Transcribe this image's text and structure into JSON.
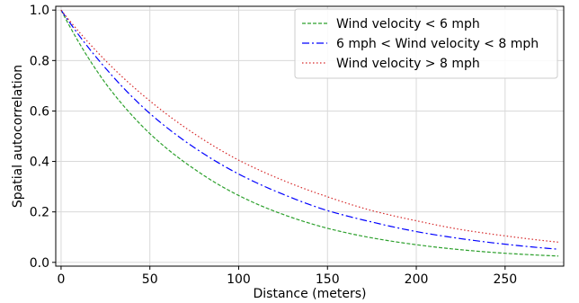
{
  "chart_data": {
    "type": "line",
    "xlabel": "Distance (meters)",
    "ylabel": "Spatial autocorrelation",
    "xlim": [
      -3,
      283
    ],
    "ylim": [
      -0.015,
      1.015
    ],
    "xticks": [
      0,
      50,
      100,
      150,
      200,
      250
    ],
    "yticks": [
      0.0,
      0.2,
      0.4,
      0.6,
      0.8,
      1.0
    ],
    "xtick_labels": [
      "0",
      "50",
      "100",
      "150",
      "200",
      "250"
    ],
    "ytick_labels": [
      "0.0",
      "0.2",
      "0.4",
      "0.6",
      "0.8",
      "1.0"
    ],
    "grid": true,
    "legend_position": "top-right",
    "series": [
      {
        "name": "Wind velocity < 6 mph",
        "color": "#2ca02c",
        "linestyle": "dashed",
        "x": [
          0,
          25,
          50,
          75,
          100,
          125,
          150,
          175,
          200,
          225,
          250,
          280
        ],
        "y": [
          1.0,
          0.71,
          0.51,
          0.37,
          0.265,
          0.19,
          0.135,
          0.097,
          0.07,
          0.05,
          0.036,
          0.025
        ]
      },
      {
        "name": "6 mph < Wind velocity < 8 mph",
        "color": "#0000ff",
        "linestyle": "dashdot",
        "x": [
          0,
          25,
          50,
          75,
          100,
          125,
          150,
          175,
          200,
          225,
          250,
          280
        ],
        "y": [
          1.0,
          0.77,
          0.59,
          0.455,
          0.35,
          0.27,
          0.205,
          0.16,
          0.122,
          0.094,
          0.072,
          0.052
        ]
      },
      {
        "name": "Wind velocity > 8 mph",
        "color": "#d62728",
        "linestyle": "dotted",
        "x": [
          0,
          25,
          50,
          75,
          100,
          125,
          150,
          175,
          200,
          225,
          250,
          280
        ],
        "y": [
          1.0,
          0.8,
          0.64,
          0.51,
          0.405,
          0.325,
          0.26,
          0.205,
          0.165,
          0.13,
          0.105,
          0.08
        ]
      }
    ]
  }
}
